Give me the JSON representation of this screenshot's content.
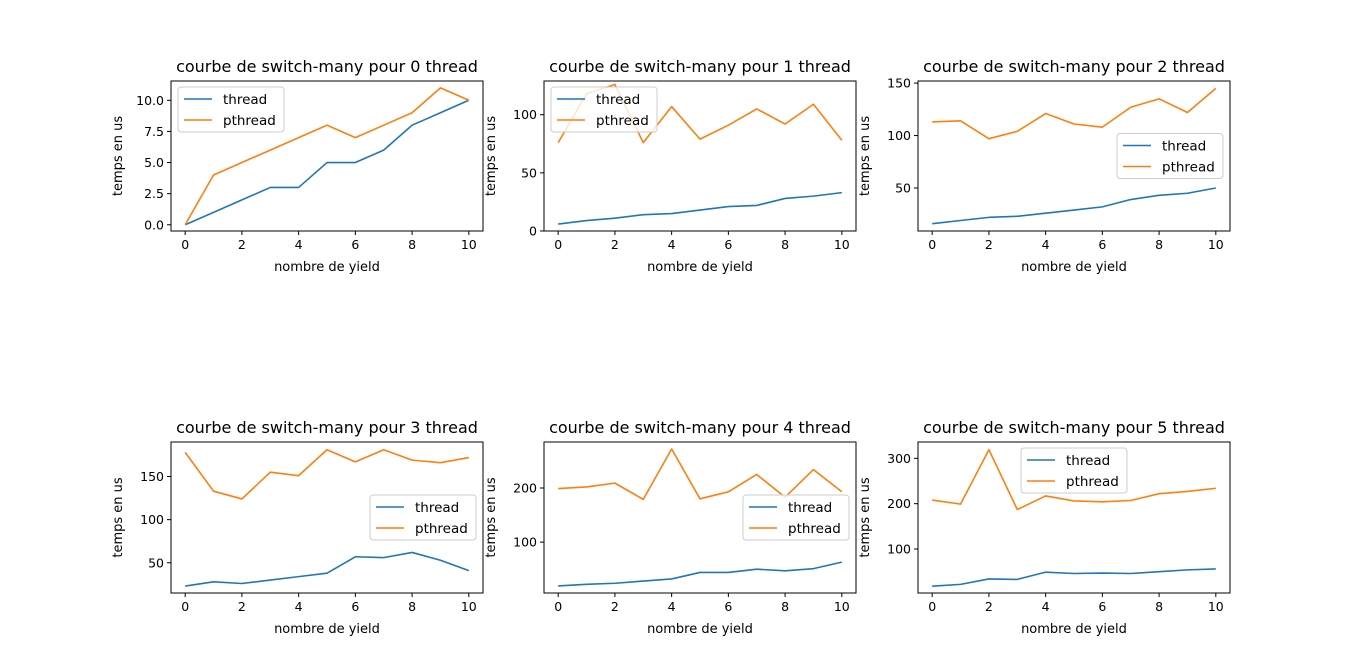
{
  "chart_data": [
    {
      "type": "line",
      "title": "courbe de switch-many pour 0 thread",
      "xlabel": "nombre de yield",
      "ylabel": "temps en us",
      "x": [
        0,
        1,
        2,
        3,
        4,
        5,
        6,
        7,
        8,
        9,
        10
      ],
      "xlim": [
        -0.5,
        10.5
      ],
      "ylim": [
        -0.5,
        11.55
      ],
      "xticks": [
        0,
        2,
        4,
        6,
        8,
        10
      ],
      "yticks": [
        0.0,
        2.5,
        5.0,
        7.5,
        10.0
      ],
      "ytick_labels": [
        "0.0",
        "2.5",
        "5.0",
        "7.5",
        "10.0"
      ],
      "legend": "upper-left",
      "series": [
        {
          "name": "thread",
          "color": "#1f77b4",
          "values": [
            0,
            1,
            2,
            3,
            3,
            5,
            5,
            6,
            8,
            9,
            10
          ]
        },
        {
          "name": "pthread",
          "color": "#ff7f0e",
          "values": [
            0,
            4,
            5,
            6,
            7,
            8,
            7,
            8,
            9,
            11,
            10
          ]
        }
      ]
    },
    {
      "type": "line",
      "title": "courbe de switch-many pour 1 thread",
      "xlabel": "nombre de yield",
      "ylabel": "temps en us",
      "x": [
        0,
        1,
        2,
        3,
        4,
        5,
        6,
        7,
        8,
        9,
        10
      ],
      "xlim": [
        -0.5,
        10.5
      ],
      "ylim": [
        0,
        129
      ],
      "xticks": [
        0,
        2,
        4,
        6,
        8,
        10
      ],
      "yticks": [
        0,
        50,
        100
      ],
      "ytick_labels": [
        "0",
        "50",
        "100"
      ],
      "legend": "upper-left",
      "series": [
        {
          "name": "thread",
          "color": "#1f77b4",
          "values": [
            6,
            9,
            11,
            14,
            15,
            18,
            21,
            22,
            28,
            30,
            33
          ]
        },
        {
          "name": "pthread",
          "color": "#ff7f0e",
          "values": [
            76,
            118,
            126,
            76,
            107,
            79,
            91,
            105,
            92,
            109,
            78
          ]
        }
      ]
    },
    {
      "type": "line",
      "title": "courbe de switch-many pour 2 thread",
      "xlabel": "nombre de yield",
      "ylabel": "temps en us",
      "x": [
        0,
        1,
        2,
        3,
        4,
        5,
        6,
        7,
        8,
        9,
        10
      ],
      "xlim": [
        -0.5,
        10.5
      ],
      "ylim": [
        9,
        152
      ],
      "xticks": [
        0,
        2,
        4,
        6,
        8,
        10
      ],
      "yticks": [
        50,
        100,
        150
      ],
      "ytick_labels": [
        "50",
        "100",
        "150"
      ],
      "legend": "center-right",
      "series": [
        {
          "name": "thread",
          "color": "#1f77b4",
          "values": [
            16,
            19,
            22,
            23,
            26,
            29,
            32,
            39,
            43,
            45,
            50
          ]
        },
        {
          "name": "pthread",
          "color": "#ff7f0e",
          "values": [
            113,
            114,
            97,
            104,
            121,
            111,
            108,
            127,
            135,
            122,
            145
          ]
        }
      ]
    },
    {
      "type": "line",
      "title": "courbe de switch-many pour 3 thread",
      "xlabel": "nombre de yield",
      "ylabel": "temps en us",
      "x": [
        0,
        1,
        2,
        3,
        4,
        5,
        6,
        7,
        8,
        9,
        10
      ],
      "xlim": [
        -0.5,
        10.5
      ],
      "ylim": [
        15,
        190
      ],
      "xticks": [
        0,
        2,
        4,
        6,
        8,
        10
      ],
      "yticks": [
        50,
        100,
        150
      ],
      "ytick_labels": [
        "50",
        "100",
        "150"
      ],
      "legend": "center-right",
      "series": [
        {
          "name": "thread",
          "color": "#1f77b4",
          "values": [
            23,
            28,
            26,
            30,
            34,
            38,
            57,
            56,
            62,
            53,
            41
          ]
        },
        {
          "name": "pthread",
          "color": "#ff7f0e",
          "values": [
            178,
            133,
            124,
            155,
            151,
            181,
            167,
            181,
            169,
            166,
            172
          ]
        }
      ]
    },
    {
      "type": "line",
      "title": "courbe de switch-many pour 4 thread",
      "xlabel": "nombre de yield",
      "ylabel": "temps en us",
      "x": [
        0,
        1,
        2,
        3,
        4,
        5,
        6,
        7,
        8,
        9,
        10
      ],
      "xlim": [
        -0.5,
        10.5
      ],
      "ylim": [
        6,
        285
      ],
      "xticks": [
        0,
        2,
        4,
        6,
        8,
        10
      ],
      "yticks": [
        100,
        200
      ],
      "ytick_labels": [
        "100",
        "200"
      ],
      "legend": "center-right",
      "series": [
        {
          "name": "thread",
          "color": "#1f77b4",
          "values": [
            19,
            22,
            24,
            28,
            32,
            44,
            44,
            50,
            47,
            51,
            63
          ]
        },
        {
          "name": "pthread",
          "color": "#ff7f0e",
          "values": [
            199,
            202,
            209,
            179,
            272,
            180,
            193,
            225,
            183,
            234,
            193
          ]
        }
      ]
    },
    {
      "type": "line",
      "title": "courbe de switch-many pour 5 thread",
      "xlabel": "nombre de yield",
      "ylabel": "temps en us",
      "x": [
        0,
        1,
        2,
        3,
        4,
        5,
        6,
        7,
        8,
        9,
        10
      ],
      "xlim": [
        -0.5,
        10.5
      ],
      "ylim": [
        3,
        336
      ],
      "xticks": [
        0,
        2,
        4,
        6,
        8,
        10
      ],
      "yticks": [
        100,
        200,
        300
      ],
      "ytick_labels": [
        "100",
        "200",
        "300"
      ],
      "legend": "upper-center",
      "series": [
        {
          "name": "thread",
          "color": "#1f77b4",
          "values": [
            18,
            22,
            34,
            33,
            49,
            46,
            47,
            46,
            50,
            54,
            56
          ]
        },
        {
          "name": "pthread",
          "color": "#ff7f0e",
          "values": [
            208,
            199,
            319,
            187,
            217,
            206,
            204,
            207,
            222,
            227,
            234
          ]
        }
      ]
    }
  ]
}
